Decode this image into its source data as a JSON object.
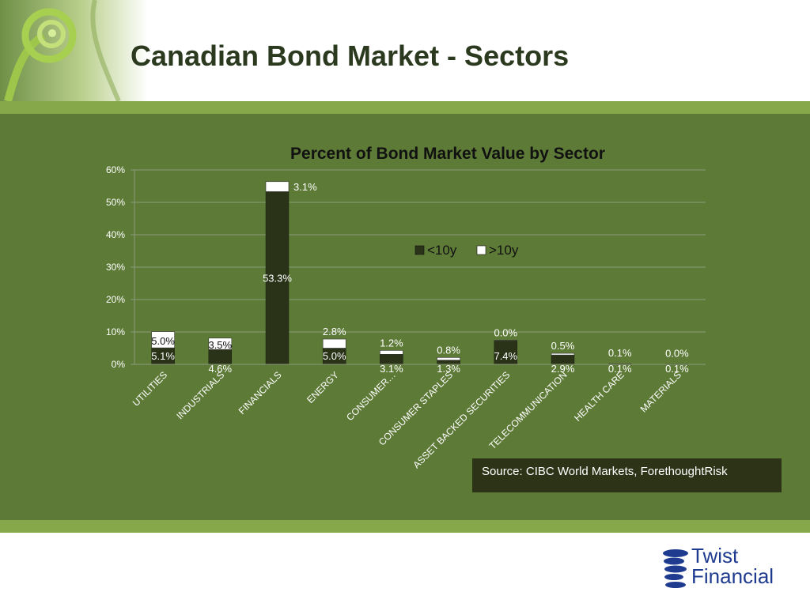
{
  "slide": {
    "title": "Canadian Bond Market - Sectors",
    "source": "Source: CIBC World Markets, ForethoughtRisk",
    "logo_line1": "Twist",
    "logo_line2": "Financial"
  },
  "colors": {
    "header_text": "#2b3a1e",
    "band": "#86a84a",
    "background": "#5d7a37",
    "series_lt10": "#2a3318",
    "series_gt10": "#ffffff",
    "source_box": "#2d3317",
    "logo": "#1f3b8f"
  },
  "chart_data": {
    "type": "bar",
    "stacked": true,
    "title": "Percent of Bond Market Value by Sector",
    "xlabel": "",
    "ylabel": "",
    "ylim": [
      0,
      60
    ],
    "yticks": [
      "0%",
      "10%",
      "20%",
      "30%",
      "40%",
      "50%",
      "60%"
    ],
    "grid": true,
    "legend_position": "center-right",
    "categories": [
      "UTILITIES",
      "INDUSTRIALS",
      "FINANCIALS",
      "ENERGY",
      "CONSUMER…",
      "CONSUMER STAPLES",
      "ASSET BACKED SECURITIES",
      "TELECOMMUNICATION",
      "HEALTH CARE",
      "MATERIALS"
    ],
    "series": [
      {
        "name": "<10y",
        "values": [
          5.1,
          4.6,
          53.3,
          5.0,
          3.1,
          1.3,
          7.4,
          2.9,
          0.1,
          0.1
        ],
        "labels": [
          "5.1%",
          "4.6%",
          "53.3%",
          "5.0%",
          "3.1%",
          "1.3%",
          "7.4%",
          "2.9%",
          "0.1%",
          "0.1%"
        ]
      },
      {
        "name": ">10y",
        "values": [
          5.0,
          3.5,
          3.1,
          2.8,
          1.2,
          0.8,
          0.0,
          0.5,
          0.1,
          0.0
        ],
        "labels": [
          "5.0%",
          "3.5%",
          "3.1%",
          "2.8%",
          "1.2%",
          "0.8%",
          "0.0%",
          "0.5%",
          "0.1%",
          "0.0%"
        ]
      }
    ]
  }
}
